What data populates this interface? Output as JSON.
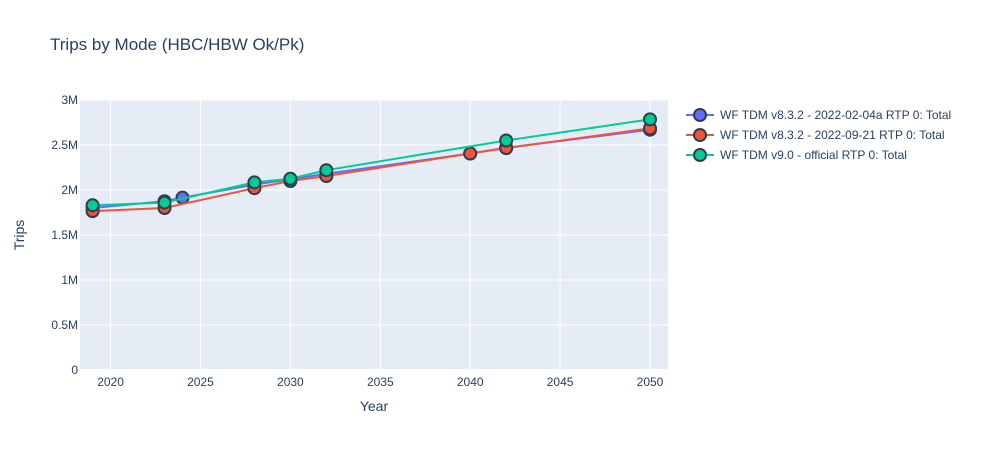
{
  "chart_data": {
    "type": "line",
    "title": "Trips by Mode (HBC/HBW Ok/Pk)",
    "xlabel": "Year",
    "ylabel": "Trips",
    "xlim": [
      2018.3,
      2051
    ],
    "ylim": [
      0,
      3000000
    ],
    "x_ticks": [
      2020,
      2025,
      2030,
      2035,
      2040,
      2045,
      2050
    ],
    "x_tick_labels": [
      "2020",
      "2025",
      "2030",
      "2035",
      "2040",
      "2045",
      "2050"
    ],
    "y_ticks": [
      0,
      500000,
      1000000,
      1500000,
      2000000,
      2500000,
      3000000
    ],
    "y_tick_labels": [
      "0",
      "0.5M",
      "1M",
      "1.5M",
      "2M",
      "2.5M",
      "3M"
    ],
    "grid": true,
    "legend_position": "right",
    "plot_background": "#e5ecf6",
    "series": [
      {
        "name": "WF TDM v8.3.2 - 2022-02-04a RTP 0: Total",
        "color": "#636efa",
        "x": [
          2019,
          2023,
          2024,
          2028,
          2030,
          2032,
          2040,
          2042,
          2050
        ],
        "y": [
          1800000,
          1875000,
          1915000,
          2060000,
          2120000,
          2180000,
          2405000,
          2470000,
          2670000
        ]
      },
      {
        "name": "WF TDM v8.3.2 - 2022-09-21 RTP 0: Total",
        "color": "#ef553b",
        "x": [
          2019,
          2023,
          2028,
          2030,
          2032,
          2040,
          2042,
          2050
        ],
        "y": [
          1765000,
          1800000,
          2020000,
          2100000,
          2155000,
          2405000,
          2465000,
          2685000
        ]
      },
      {
        "name": "WF TDM v9.0 - official RTP 0: Total",
        "color": "#00cc96",
        "x": [
          2019,
          2023,
          2028,
          2030,
          2032,
          2042,
          2050
        ],
        "y": [
          1830000,
          1860000,
          2085000,
          2125000,
          2220000,
          2550000,
          2785000
        ]
      }
    ]
  }
}
